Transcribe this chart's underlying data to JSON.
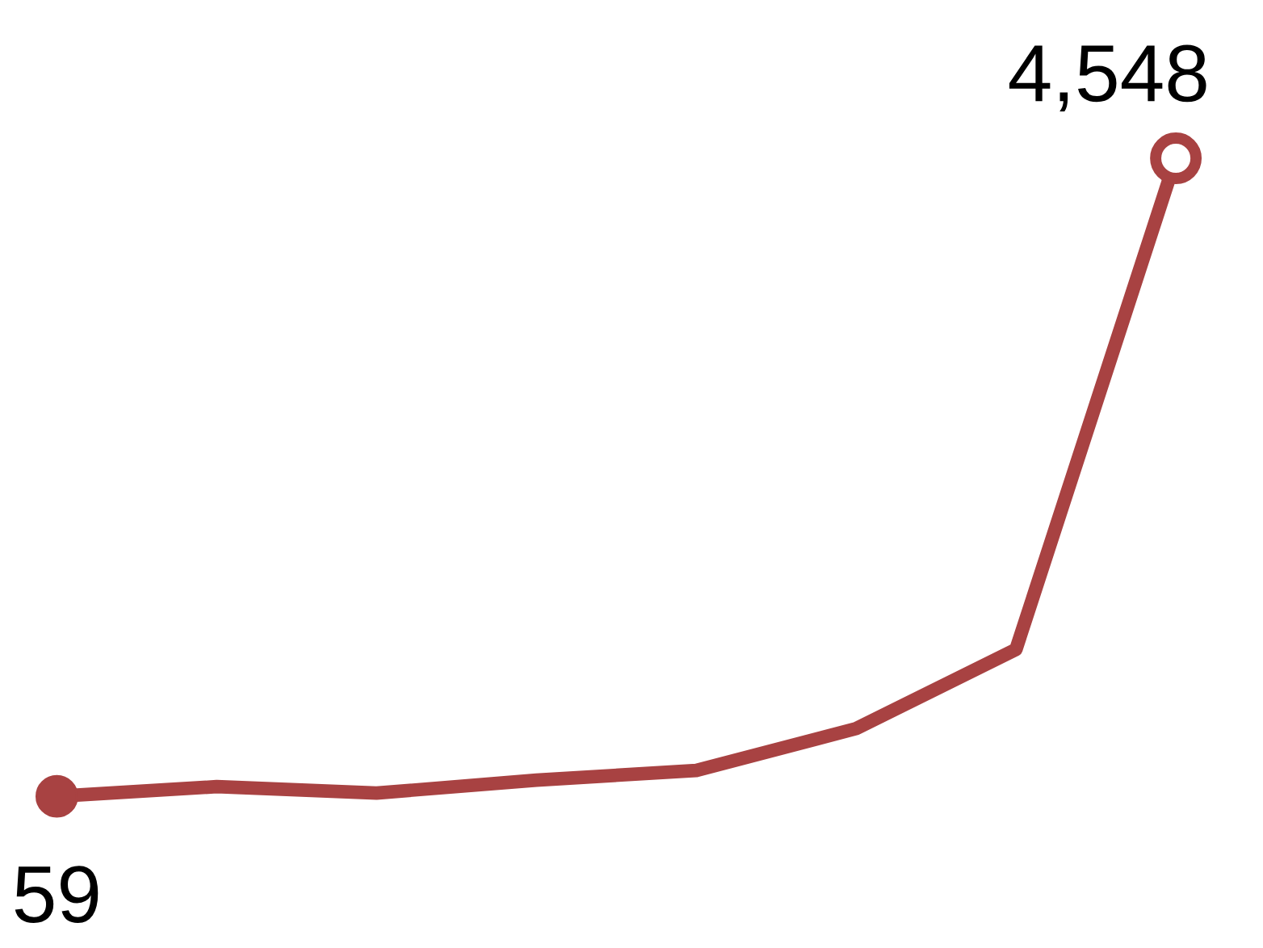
{
  "chart_data": {
    "type": "line",
    "categories": [
      null,
      null,
      null,
      null,
      null,
      null,
      null,
      null
    ],
    "series": [
      {
        "color": "#a84242",
        "values": [
          59,
          127,
          82,
          173,
          241,
          536,
          1093,
          4548
        ],
        "value_labels": [
          "59",
          null,
          null,
          null,
          null,
          null,
          null,
          "4,548"
        ]
      }
    ],
    "line_style": "solid"
  }
}
